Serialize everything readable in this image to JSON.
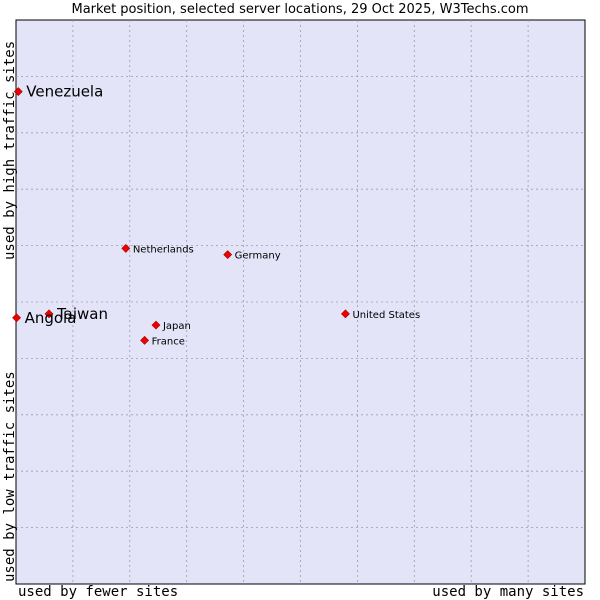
{
  "chart_data": {
    "type": "scatter",
    "title": "Market position, selected server locations, 29 Oct 2025, W3Techs.com",
    "xlabel_low": "used by fewer sites",
    "xlabel_high": "used by many sites",
    "ylabel_low": "used by low traffic sites",
    "ylabel_high": "used by high traffic sites",
    "xlim": [
      0,
      100
    ],
    "ylim": [
      0,
      100
    ],
    "grid": true,
    "points": [
      {
        "name": "Venezuela",
        "x": 0.4,
        "y": 87.3,
        "emphasis": true
      },
      {
        "name": "Netherlands",
        "x": 19.3,
        "y": 59.5,
        "emphasis": false
      },
      {
        "name": "Germany",
        "x": 37.2,
        "y": 58.4,
        "emphasis": false
      },
      {
        "name": "Taiwan",
        "x": 5.8,
        "y": 47.9,
        "emphasis": true
      },
      {
        "name": "Angola",
        "x": 0.1,
        "y": 47.2,
        "emphasis": true
      },
      {
        "name": "United States",
        "x": 57.9,
        "y": 47.9,
        "emphasis": false
      },
      {
        "name": "Japan",
        "x": 24.6,
        "y": 45.9,
        "emphasis": false
      },
      {
        "name": "France",
        "x": 22.6,
        "y": 43.2,
        "emphasis": false
      }
    ]
  },
  "colors": {
    "plot_background": "#e4e4f8",
    "grid": "#9a9ab8",
    "marker": "#ee0000"
  }
}
